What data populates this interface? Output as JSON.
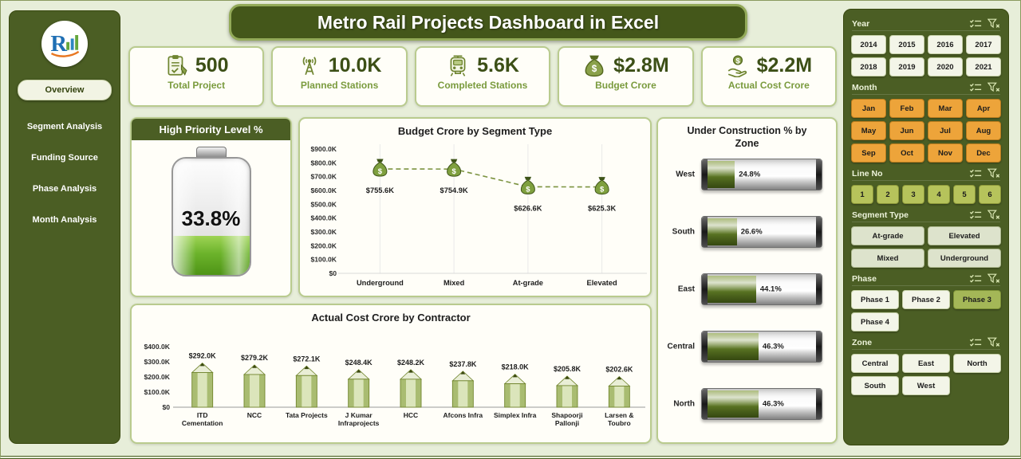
{
  "title": "Metro Rail Projects Dashboard in Excel",
  "colors": {
    "panel_green": "#4b5e24",
    "banner_green": "#44571a",
    "accent_green": "#7a9b3e",
    "value_green": "#3c4f16",
    "month_orange": "#eda43a",
    "battery_fill": "#6cb32b"
  },
  "sidebar": {
    "items": [
      {
        "label": "Overview",
        "active": true
      },
      {
        "label": "Segment Analysis",
        "active": false
      },
      {
        "label": "Funding Source",
        "active": false
      },
      {
        "label": "Phase Analysis",
        "active": false
      },
      {
        "label": "Month Analysis",
        "active": false
      }
    ]
  },
  "kpis": [
    {
      "icon": "clipboard-icon",
      "value": "500",
      "label": "Total Project"
    },
    {
      "icon": "antenna-icon",
      "value": "10.0K",
      "label": "Planned Stations"
    },
    {
      "icon": "train-icon",
      "value": "5.6K",
      "label": "Completed Stations"
    },
    {
      "icon": "money-bag-icon",
      "value": "$2.8M",
      "label": "Budget Crore"
    },
    {
      "icon": "hand-coin-icon",
      "value": "$2.2M",
      "label": "Actual Cost Crore"
    }
  ],
  "priority": {
    "title": "High Priority Level %",
    "value_label": "33.8%",
    "percent": 33.8
  },
  "chart_data": [
    {
      "name": "budget_by_segment",
      "type": "line",
      "title": "Budget Crore by Segment Type",
      "categories": [
        "Underground",
        "Mixed",
        "At-grade",
        "Elevated"
      ],
      "values": [
        755600,
        754900,
        626600,
        625300
      ],
      "value_labels": [
        "$755.6K",
        "$754.9K",
        "$626.6K",
        "$625.3K"
      ],
      "y_ticks": [
        "$900.0K",
        "$800.0K",
        "$700.0K",
        "$600.0K",
        "$500.0K",
        "$400.0K",
        "$300.0K",
        "$200.0K",
        "$100.0K",
        "$0"
      ],
      "ylim": [
        0,
        900000
      ],
      "marker": "money-bag",
      "line_style": "dashed",
      "legend": "none",
      "grid": "vertical-light"
    },
    {
      "name": "actual_cost_by_contractor",
      "type": "bar",
      "title": "Actual Cost Crore by Contractor",
      "categories": [
        "ITD Cementation",
        "NCC",
        "Tata Projects",
        "J Kumar Infraprojects",
        "HCC",
        "Afcons Infra",
        "Simplex Infra",
        "Shapoorji Pallonji",
        "Larsen & Toubro"
      ],
      "values": [
        292000,
        279200,
        272100,
        248400,
        248200,
        237800,
        218000,
        205800,
        202600
      ],
      "value_labels": [
        "$292.0K",
        "$279.2K",
        "$272.1K",
        "$248.4K",
        "$248.2K",
        "$237.8K",
        "$218.0K",
        "$205.8K",
        "$202.6K"
      ],
      "y_ticks": [
        "$400.0K",
        "$300.0K",
        "$200.0K",
        "$100.0K",
        "$0"
      ],
      "ylim": [
        0,
        400000
      ],
      "bar_shape": "pencil",
      "legend": "none"
    },
    {
      "name": "under_construction_by_zone",
      "type": "bar-horizontal",
      "title": "Under Construction % by Zone",
      "categories": [
        "West",
        "South",
        "East",
        "Central",
        "North"
      ],
      "values": [
        24.8,
        26.6,
        44.1,
        46.3,
        46.3
      ],
      "value_labels": [
        "24.8%",
        "26.6%",
        "44.1%",
        "46.3%",
        "46.3%"
      ],
      "xlim": [
        0,
        100
      ],
      "bar_shape": "glossy-tube",
      "legend": "none"
    }
  ],
  "slicers": [
    {
      "title": "Year",
      "button_style": "light",
      "cols": 4,
      "icons": [
        "multiselect-icon",
        "clear-filter-icon"
      ],
      "options": [
        "2014",
        "2015",
        "2016",
        "2017",
        "2018",
        "2019",
        "2020",
        "2021"
      ]
    },
    {
      "title": "Month",
      "button_style": "orange",
      "cols": 4,
      "icons": [
        "multiselect-icon",
        "clear-filter-icon"
      ],
      "options": [
        "Jan",
        "Feb",
        "Mar",
        "Apr",
        "May",
        "Jun",
        "Jul",
        "Aug",
        "Sep",
        "Oct",
        "Nov",
        "Dec"
      ]
    },
    {
      "title": "Line No",
      "button_style": "olive",
      "cols": 6,
      "icons": [
        "multiselect-icon",
        "clear-filter-icon"
      ],
      "options": [
        "1",
        "2",
        "3",
        "4",
        "5",
        "6"
      ]
    },
    {
      "title": "Segment Type",
      "button_style": "sage",
      "cols": 2,
      "icons": [
        "multiselect-icon",
        "clear-filter-icon"
      ],
      "options": [
        "At-grade",
        "Elevated",
        "Mixed",
        "Underground"
      ]
    },
    {
      "title": "Phase",
      "button_style": "light",
      "cols": 3,
      "icons": [
        "multiselect-icon",
        "clear-filter-icon"
      ],
      "options": [
        "Phase 1",
        "Phase 2",
        "Phase 3",
        "Phase 4"
      ],
      "selected": "Phase 3"
    },
    {
      "title": "Zone",
      "button_style": "light",
      "cols": 3,
      "icons": [
        "multiselect-icon",
        "clear-filter-icon"
      ],
      "options": [
        "Central",
        "East",
        "North",
        "South",
        "West"
      ]
    }
  ]
}
